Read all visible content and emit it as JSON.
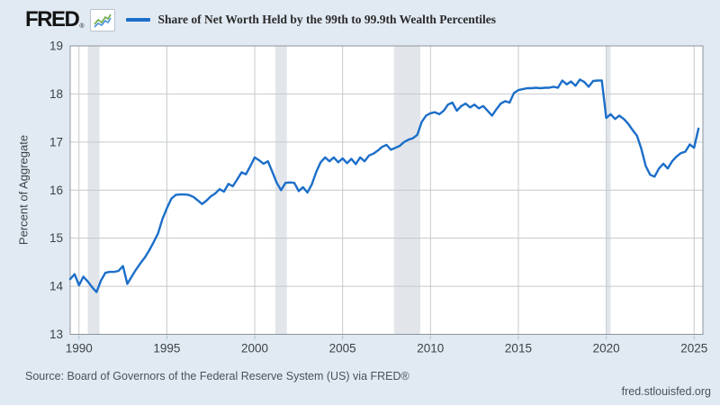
{
  "header": {
    "logo_text": "FRED",
    "logo_registered": "®",
    "series_title": "Share of Net Worth Held by the 99th to 99.9th Wealth Percentiles"
  },
  "colors": {
    "line": "#1b6ec9",
    "recession_band": "#e2e6ea",
    "plot_background": "#ffffff",
    "page_background": "#e1eaf3",
    "gridline": "#c5c9cc",
    "plot_border": "#8d959c",
    "tick_mark": "#a9c2d8",
    "axis_text": "#3d4247"
  },
  "chart_data": {
    "type": "line",
    "title": "Share of Net Worth Held by the 99th to 99.9th Wealth Percentiles",
    "xlabel": "",
    "ylabel": "Percent of Aggregate",
    "legend_position": "top",
    "grid": true,
    "ylim": [
      13,
      19
    ],
    "yticks": [
      13,
      14,
      15,
      16,
      17,
      18,
      19
    ],
    "x_range": [
      1989.5,
      2025.5
    ],
    "xticks": [
      1990,
      1995,
      2000,
      2005,
      2010,
      2015,
      2020,
      2025
    ],
    "x_start": 1989.5,
    "x_step": 0.25,
    "frequency_note": "quarterly observations, 1989Q3 to 2025Q2",
    "recession_bands": [
      [
        1990.5,
        1991.17
      ],
      [
        2001.17,
        2001.83
      ],
      [
        2007.92,
        2009.42
      ],
      [
        2020.0,
        2020.25
      ]
    ],
    "series": [
      {
        "name": "Share of Net Worth Held by the 99th to 99.9th Wealth Percentiles",
        "color": "#1b6ec9",
        "values": [
          14.15,
          14.25,
          14.02,
          14.2,
          14.1,
          13.98,
          13.88,
          14.12,
          14.28,
          14.3,
          14.3,
          14.32,
          14.42,
          14.05,
          14.2,
          14.35,
          14.48,
          14.6,
          14.75,
          14.92,
          15.1,
          15.4,
          15.62,
          15.82,
          15.9,
          15.91,
          15.91,
          15.9,
          15.86,
          15.79,
          15.71,
          15.78,
          15.87,
          15.93,
          16.02,
          15.97,
          16.13,
          16.08,
          16.22,
          16.37,
          16.33,
          16.5,
          16.68,
          16.62,
          16.55,
          16.6,
          16.38,
          16.15,
          16.0,
          16.15,
          16.16,
          16.15,
          15.98,
          16.06,
          15.95,
          16.12,
          16.38,
          16.58,
          16.68,
          16.6,
          16.68,
          16.58,
          16.66,
          16.56,
          16.65,
          16.54,
          16.68,
          16.6,
          16.72,
          16.76,
          16.82,
          16.9,
          16.94,
          16.84,
          16.88,
          16.92,
          17.0,
          17.05,
          17.08,
          17.15,
          17.42,
          17.55,
          17.6,
          17.62,
          17.58,
          17.65,
          17.78,
          17.82,
          17.65,
          17.75,
          17.8,
          17.72,
          17.78,
          17.7,
          17.75,
          17.65,
          17.55,
          17.68,
          17.8,
          17.85,
          17.82,
          18.02,
          18.08,
          18.1,
          18.12,
          18.12,
          18.13,
          18.12,
          18.13,
          18.13,
          18.15,
          18.13,
          18.28,
          18.2,
          18.26,
          18.17,
          18.3,
          18.25,
          18.15,
          18.27,
          18.28,
          18.28,
          17.5,
          17.58,
          17.48,
          17.55,
          17.48,
          17.38,
          17.25,
          17.13,
          16.85,
          16.5,
          16.32,
          16.28,
          16.45,
          16.55,
          16.45,
          16.6,
          16.7,
          16.77,
          16.8,
          16.95,
          16.88,
          17.28
        ]
      }
    ]
  },
  "footer": {
    "source": "Source: Board of Governors of the Federal Reserve System (US) via FRED®",
    "site": "fred.stlouisfed.org"
  }
}
